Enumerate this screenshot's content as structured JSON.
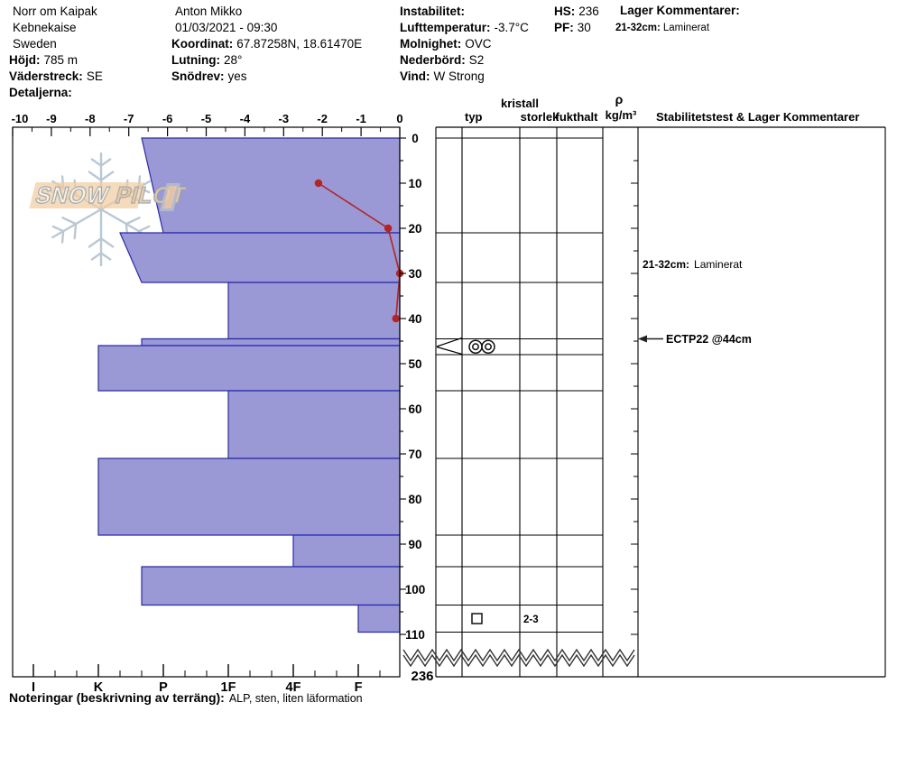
{
  "header": {
    "left": [
      {
        "label": "",
        "value": "Norr om Kaipak"
      },
      {
        "label": "",
        "value": "Kebnekaise"
      },
      {
        "label": "",
        "value": "Sweden"
      },
      {
        "label": "Höjd:",
        "value": "785 m"
      },
      {
        "label": "Väderstreck:",
        "value": "SE"
      },
      {
        "label": "Detaljerna:",
        "value": ""
      }
    ],
    "middle": [
      {
        "label": "",
        "value": "Anton Mikko"
      },
      {
        "label": "",
        "value": "01/03/2021 - 09:30"
      },
      {
        "label": "Koordinat:",
        "value": "67.87258N, 18.61470E"
      },
      {
        "label": "Lutning:",
        "value": "28°"
      },
      {
        "label": "Snödrev:",
        "value": "yes"
      }
    ],
    "right": [
      {
        "label": "Instabilitet:",
        "value": ""
      },
      {
        "label": "Lufttemperatur:",
        "value": "-3.7°C"
      },
      {
        "label": "Molnighet:",
        "value": "OVC"
      },
      {
        "label": "Nederbörd:",
        "value": "S2"
      },
      {
        "label": "Vind:",
        "value": "W Strong"
      }
    ],
    "hs_pf": [
      {
        "label": "HS:",
        "value": "236"
      },
      {
        "label": "PF:",
        "value": "30"
      }
    ],
    "lager_title": "Lager Kommentarer:",
    "lager_entry": {
      "label": "21-32cm:",
      "value": "Laminerat"
    }
  },
  "table": {
    "col_headers": {
      "typ": "typ",
      "kristall": "kristall",
      "storlek": "storlek",
      "fukthalt": "fukthalt",
      "rho": "ρ",
      "rho_unit": "kg/m³",
      "stability": "Stabilitetstest & Lager Kommentarer"
    }
  },
  "chart_data": {
    "type": "bar",
    "title": "Snow profile: hand hardness bars with temperature line",
    "depth_axis": {
      "unit": "cm",
      "ticks": [
        0,
        10,
        20,
        30,
        40,
        50,
        60,
        70,
        80,
        90,
        100,
        110
      ],
      "minor_step": 5,
      "total_depth": "236"
    },
    "temperature_axis": {
      "unit": "°C",
      "range": [
        -10,
        0
      ],
      "ticks": [
        -10,
        -9,
        -8,
        -7,
        -6,
        -5,
        -4,
        -3,
        -2,
        -1,
        0
      ]
    },
    "hardness_axis": {
      "categories": [
        "I",
        "K",
        "P",
        "1F",
        "4F",
        "F"
      ]
    },
    "layers": [
      {
        "top_cm": 0,
        "bottom_cm": 21,
        "hardness_top": "P+",
        "hardness_bottom": "P",
        "v_top": 4.333,
        "v_bot": 4.0
      },
      {
        "top_cm": 21,
        "bottom_cm": 32,
        "hardness_top": "K-",
        "hardness_bottom": "P+",
        "v_top": 4.667,
        "v_bot": 4.333,
        "comment": "Laminerat"
      },
      {
        "top_cm": 32,
        "bottom_cm": 44.5,
        "hardness_top": "1F",
        "hardness_bottom": "1F",
        "v_top": 3.0,
        "v_bot": 3.0
      },
      {
        "top_cm": 44.5,
        "bottom_cm": 46,
        "hardness_top": "P+",
        "hardness_bottom": "P+",
        "v_top": 4.333,
        "v_bot": 4.333,
        "grain_type": "MF",
        "grain_symbol": "◎◎"
      },
      {
        "top_cm": 46,
        "bottom_cm": 56,
        "hardness_top": "K",
        "hardness_bottom": "K",
        "v_top": 5.0,
        "v_bot": 5.0
      },
      {
        "top_cm": 56,
        "bottom_cm": 71,
        "hardness_top": "1F",
        "hardness_bottom": "1F",
        "v_top": 3.0,
        "v_bot": 3.0
      },
      {
        "top_cm": 71,
        "bottom_cm": 88,
        "hardness_top": "K",
        "hardness_bottom": "K",
        "v_top": 5.0,
        "v_bot": 5.0
      },
      {
        "top_cm": 88,
        "bottom_cm": 95,
        "hardness_top": "4F",
        "hardness_bottom": "4F",
        "v_top": 2.0,
        "v_bot": 2.0
      },
      {
        "top_cm": 95,
        "bottom_cm": 103.5,
        "hardness_top": "P+",
        "hardness_bottom": "P+",
        "v_top": 4.333,
        "v_bot": 4.333
      },
      {
        "top_cm": 103.5,
        "bottom_cm": 109.5,
        "hardness_top": "F",
        "hardness_bottom": "F",
        "v_top": 1.0,
        "v_bot": 1.0,
        "grain_type": "FC",
        "grain_symbol": "□",
        "grain_size": "2-3"
      }
    ],
    "temperature_profile": [
      {
        "depth_cm": 10,
        "temp_c": -2.1
      },
      {
        "depth_cm": 20,
        "temp_c": -0.3
      },
      {
        "depth_cm": 30,
        "temp_c": 0.0
      },
      {
        "depth_cm": 40,
        "temp_c": -0.1
      }
    ]
  },
  "annotations": {
    "layer_comment": {
      "label": "21-32cm:",
      "text": "Laminerat",
      "depth_cm": 28
    },
    "test": {
      "label": "ECTP22 @44cm",
      "depth_cm": 44.5
    },
    "total_depth_label": "236"
  },
  "grain_rows": {
    "weak_layer_size": "",
    "bottom_layer_size": "2-3"
  },
  "logo": {
    "text_left": "SNOW",
    "text_right": " PILOT"
  },
  "notes": {
    "label": "Noteringar (beskrivning av terräng):",
    "value": "ALP, sten, liten läformation"
  },
  "colors": {
    "bar_fill": "#9a99d6",
    "bar_stroke": "#2a2aae",
    "temp_line": "#b32424",
    "axis": "#000000",
    "logo_flake": "#b7c6d1",
    "logo_text": "#eec9a0"
  }
}
